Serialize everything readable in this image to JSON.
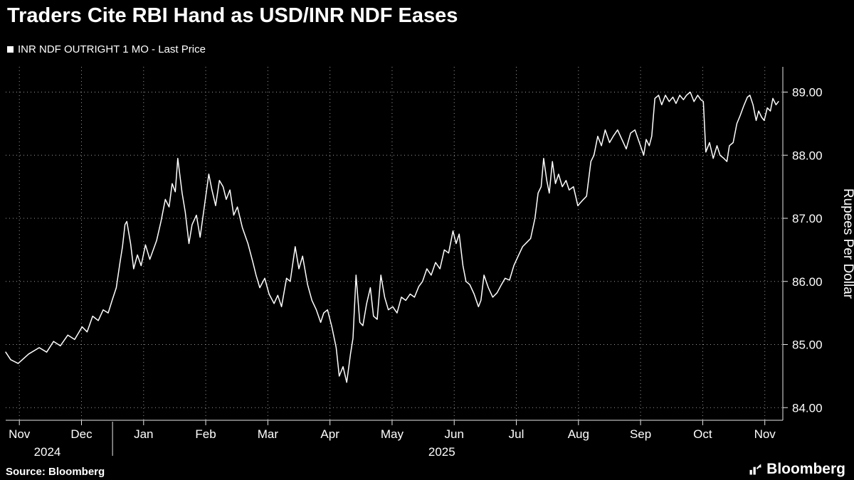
{
  "header": {
    "title": "Traders Cite RBI Hand as USD/INR NDF Eases"
  },
  "legend": {
    "label": "INR NDF OUTRIGHT 1 MO - Last Price",
    "marker_color": "#ffffff"
  },
  "footer": {
    "source": "Source: Bloomberg",
    "brand": "Bloomberg"
  },
  "chart_data": {
    "type": "line",
    "title": "Traders Cite RBI Hand as USD/INR NDF Eases",
    "series_name": "INR NDF OUTRIGHT 1 MO - Last Price",
    "ylabel": "Rupees Per Dollar",
    "grid": "dotted",
    "legend_position": "top-left",
    "colors": {
      "background": "#000000",
      "line": "#ffffff",
      "grid": "#9a9a9a",
      "text": "#ffffff"
    },
    "x_axis": {
      "unit": "month index (0 = Nov 2024)",
      "tick_positions": [
        0,
        1,
        2,
        3,
        4,
        5,
        6,
        7,
        8,
        9,
        10,
        11,
        12
      ],
      "tick_labels": [
        "Nov",
        "Dec",
        "Jan",
        "Feb",
        "Mar",
        "Apr",
        "May",
        "Jun",
        "Jul",
        "Aug",
        "Sep",
        "Oct",
        "Nov"
      ],
      "year_labels": [
        {
          "text": "2024",
          "position": 0.45
        },
        {
          "text": "2025",
          "position": 6.8
        }
      ],
      "year_divider_position": 1.5,
      "xlim": [
        -0.22,
        12.29
      ]
    },
    "y_axis": {
      "side": "right",
      "tick_values": [
        84,
        85,
        86,
        87,
        88,
        89
      ],
      "tick_labels": [
        "84.00",
        "85.00",
        "86.00",
        "87.00",
        "88.00",
        "89.00"
      ],
      "ylim": [
        83.8,
        89.4
      ]
    },
    "points": [
      [
        -0.22,
        84.88
      ],
      [
        -0.14,
        84.76
      ],
      [
        -0.02,
        84.7
      ],
      [
        0.15,
        84.85
      ],
      [
        0.32,
        84.95
      ],
      [
        0.44,
        84.88
      ],
      [
        0.55,
        85.05
      ],
      [
        0.66,
        84.98
      ],
      [
        0.78,
        85.15
      ],
      [
        0.89,
        85.08
      ],
      [
        1.01,
        85.28
      ],
      [
        1.09,
        85.2
      ],
      [
        1.18,
        85.45
      ],
      [
        1.27,
        85.38
      ],
      [
        1.35,
        85.55
      ],
      [
        1.43,
        85.5
      ],
      [
        1.5,
        85.72
      ],
      [
        1.56,
        85.9
      ],
      [
        1.62,
        86.3
      ],
      [
        1.66,
        86.55
      ],
      [
        1.7,
        86.9
      ],
      [
        1.73,
        86.95
      ],
      [
        1.79,
        86.6
      ],
      [
        1.84,
        86.2
      ],
      [
        1.9,
        86.42
      ],
      [
        1.96,
        86.25
      ],
      [
        2.03,
        86.58
      ],
      [
        2.1,
        86.35
      ],
      [
        2.21,
        86.65
      ],
      [
        2.28,
        86.95
      ],
      [
        2.35,
        87.3
      ],
      [
        2.41,
        87.18
      ],
      [
        2.46,
        87.55
      ],
      [
        2.51,
        87.42
      ],
      [
        2.55,
        87.95
      ],
      [
        2.62,
        87.4
      ],
      [
        2.67,
        87.1
      ],
      [
        2.73,
        86.6
      ],
      [
        2.78,
        86.9
      ],
      [
        2.85,
        87.05
      ],
      [
        2.91,
        86.7
      ],
      [
        2.98,
        87.2
      ],
      [
        3.05,
        87.7
      ],
      [
        3.1,
        87.45
      ],
      [
        3.16,
        87.2
      ],
      [
        3.22,
        87.6
      ],
      [
        3.28,
        87.5
      ],
      [
        3.33,
        87.3
      ],
      [
        3.39,
        87.45
      ],
      [
        3.45,
        87.05
      ],
      [
        3.51,
        87.18
      ],
      [
        3.59,
        86.85
      ],
      [
        3.68,
        86.6
      ],
      [
        3.76,
        86.3
      ],
      [
        3.81,
        86.1
      ],
      [
        3.87,
        85.9
      ],
      [
        3.95,
        86.05
      ],
      [
        4.02,
        85.8
      ],
      [
        4.1,
        85.65
      ],
      [
        4.16,
        85.78
      ],
      [
        4.22,
        85.6
      ],
      [
        4.3,
        86.05
      ],
      [
        4.36,
        86.0
      ],
      [
        4.44,
        86.55
      ],
      [
        4.5,
        86.2
      ],
      [
        4.56,
        86.4
      ],
      [
        4.64,
        85.95
      ],
      [
        4.71,
        85.7
      ],
      [
        4.78,
        85.55
      ],
      [
        4.85,
        85.35
      ],
      [
        4.9,
        85.5
      ],
      [
        4.96,
        85.55
      ],
      [
        5.03,
        85.28
      ],
      [
        5.1,
        84.95
      ],
      [
        5.15,
        84.5
      ],
      [
        5.21,
        84.65
      ],
      [
        5.27,
        84.4
      ],
      [
        5.33,
        84.85
      ],
      [
        5.37,
        85.1
      ],
      [
        5.42,
        86.1
      ],
      [
        5.48,
        85.35
      ],
      [
        5.53,
        85.3
      ],
      [
        5.59,
        85.65
      ],
      [
        5.65,
        85.9
      ],
      [
        5.7,
        85.45
      ],
      [
        5.76,
        85.4
      ],
      [
        5.82,
        86.1
      ],
      [
        5.88,
        85.75
      ],
      [
        5.94,
        85.55
      ],
      [
        6.01,
        85.6
      ],
      [
        6.08,
        85.5
      ],
      [
        6.15,
        85.75
      ],
      [
        6.22,
        85.7
      ],
      [
        6.29,
        85.8
      ],
      [
        6.36,
        85.75
      ],
      [
        6.43,
        85.92
      ],
      [
        6.49,
        86.0
      ],
      [
        6.56,
        86.2
      ],
      [
        6.63,
        86.1
      ],
      [
        6.7,
        86.3
      ],
      [
        6.77,
        86.2
      ],
      [
        6.84,
        86.5
      ],
      [
        6.91,
        86.45
      ],
      [
        6.98,
        86.8
      ],
      [
        7.03,
        86.6
      ],
      [
        7.08,
        86.75
      ],
      [
        7.14,
        86.25
      ],
      [
        7.19,
        86.0
      ],
      [
        7.25,
        85.95
      ],
      [
        7.32,
        85.8
      ],
      [
        7.39,
        85.6
      ],
      [
        7.43,
        85.7
      ],
      [
        7.48,
        86.1
      ],
      [
        7.55,
        85.9
      ],
      [
        7.62,
        85.75
      ],
      [
        7.69,
        85.82
      ],
      [
        7.76,
        85.95
      ],
      [
        7.82,
        86.05
      ],
      [
        7.89,
        86.02
      ],
      [
        7.96,
        86.25
      ],
      [
        8.03,
        86.4
      ],
      [
        8.1,
        86.55
      ],
      [
        8.17,
        86.62
      ],
      [
        8.23,
        86.68
      ],
      [
        8.3,
        87.0
      ],
      [
        8.35,
        87.4
      ],
      [
        8.4,
        87.5
      ],
      [
        8.44,
        87.95
      ],
      [
        8.49,
        87.6
      ],
      [
        8.53,
        87.4
      ],
      [
        8.58,
        87.9
      ],
      [
        8.63,
        87.55
      ],
      [
        8.68,
        87.7
      ],
      [
        8.74,
        87.5
      ],
      [
        8.8,
        87.6
      ],
      [
        8.85,
        87.45
      ],
      [
        8.92,
        87.5
      ],
      [
        8.99,
        87.2
      ],
      [
        9.06,
        87.28
      ],
      [
        9.13,
        87.35
      ],
      [
        9.2,
        87.9
      ],
      [
        9.25,
        88.0
      ],
      [
        9.31,
        88.3
      ],
      [
        9.37,
        88.15
      ],
      [
        9.43,
        88.4
      ],
      [
        9.5,
        88.2
      ],
      [
        9.56,
        88.3
      ],
      [
        9.63,
        88.4
      ],
      [
        9.7,
        88.25
      ],
      [
        9.77,
        88.1
      ],
      [
        9.84,
        88.35
      ],
      [
        9.91,
        88.4
      ],
      [
        9.98,
        88.2
      ],
      [
        10.05,
        88.0
      ],
      [
        10.09,
        88.25
      ],
      [
        10.14,
        88.15
      ],
      [
        10.18,
        88.3
      ],
      [
        10.23,
        88.9
      ],
      [
        10.29,
        88.95
      ],
      [
        10.34,
        88.8
      ],
      [
        10.4,
        88.95
      ],
      [
        10.46,
        88.85
      ],
      [
        10.52,
        88.92
      ],
      [
        10.57,
        88.82
      ],
      [
        10.63,
        88.95
      ],
      [
        10.69,
        88.88
      ],
      [
        10.74,
        88.95
      ],
      [
        10.8,
        89.0
      ],
      [
        10.86,
        88.85
      ],
      [
        10.92,
        88.95
      ],
      [
        10.97,
        88.88
      ],
      [
        11.01,
        88.85
      ],
      [
        11.05,
        88.05
      ],
      [
        11.11,
        88.2
      ],
      [
        11.17,
        87.95
      ],
      [
        11.23,
        88.15
      ],
      [
        11.28,
        88.0
      ],
      [
        11.34,
        87.95
      ],
      [
        11.39,
        87.9
      ],
      [
        11.43,
        88.15
      ],
      [
        11.49,
        88.2
      ],
      [
        11.55,
        88.5
      ],
      [
        11.6,
        88.62
      ],
      [
        11.66,
        88.78
      ],
      [
        11.72,
        88.92
      ],
      [
        11.76,
        88.95
      ],
      [
        11.81,
        88.8
      ],
      [
        11.86,
        88.55
      ],
      [
        11.9,
        88.7
      ],
      [
        11.95,
        88.6
      ],
      [
        11.99,
        88.55
      ],
      [
        12.04,
        88.75
      ],
      [
        12.09,
        88.7
      ],
      [
        12.13,
        88.9
      ],
      [
        12.18,
        88.8
      ],
      [
        12.22,
        88.85
      ]
    ]
  }
}
